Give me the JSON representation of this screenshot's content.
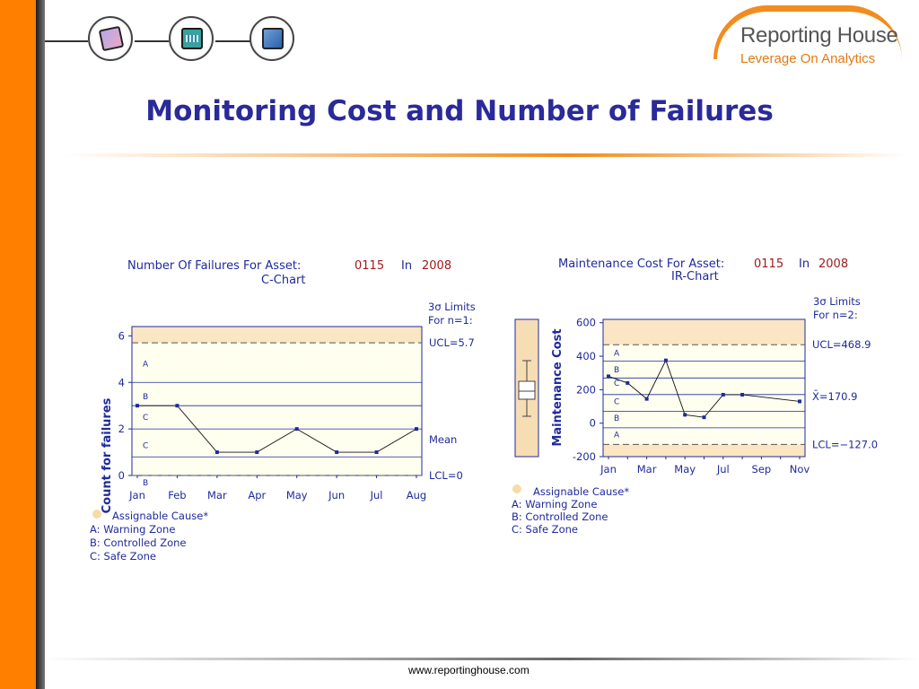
{
  "page": {
    "title": "Monitoring Cost and Number of Failures",
    "footer": "www.reportinghouse.com"
  },
  "logo": {
    "name": "Reporting House",
    "tagline": "Leverage On Analytics"
  },
  "nav": {
    "icons": [
      "chart-frame-icon",
      "dashboard-frame-icon",
      "monitor-icon"
    ]
  },
  "colors": {
    "accent_orange": "#ff7f00",
    "title_blue": "#2a2a9a",
    "chart_blue": "#1f2a9c",
    "chart_fill": "#fffff0",
    "zone_a_fill": "#fbe6c4",
    "lcl_box_fill": "#f7ddb4"
  },
  "chart_data": [
    {
      "type": "line",
      "title_label": "Number Of Failures For Asset:",
      "asset": "0115",
      "in_label": "In",
      "year": "2008",
      "subtitle": "C-Chart",
      "ylabel": "Count for failures",
      "xlabel": "",
      "limits_title": "3σ Limits",
      "limits_n": "For n=1:",
      "categories": [
        "Jan",
        "Feb",
        "Mar",
        "Apr",
        "May",
        "Jun",
        "Jul",
        "Aug"
      ],
      "values": [
        3,
        3,
        1,
        1,
        2,
        1,
        1,
        2
      ],
      "ylim": [
        0,
        6.4
      ],
      "yticks": [
        0,
        2,
        4,
        6
      ],
      "ucl": 5.7,
      "mean": 3.0,
      "lcl": 0,
      "ucl_label": "UCL=5.7",
      "mean_label": "Mean",
      "lcl_label": "LCL=0",
      "zone_lines": [
        4.0,
        2.0,
        0.8
      ],
      "zone_labels": [
        {
          "text": "A",
          "y": 4.8
        },
        {
          "text": "B",
          "y": 3.4
        },
        {
          "text": "C",
          "y": 2.5
        },
        {
          "text": "C",
          "y": 1.3
        },
        {
          "text": "B",
          "y": -0.3
        }
      ],
      "grid": false,
      "legend": {
        "assignable": "Assignable Cause*",
        "a": "A: Warning Zone",
        "b": "B: Controlled Zone",
        "c": "C: Safe Zone"
      }
    },
    {
      "type": "line",
      "title_label": "Maintenance Cost For Asset:",
      "asset": "0115",
      "in_label": "In",
      "year": "2008",
      "subtitle": "IR-Chart",
      "ylabel": "Maintenance Cost",
      "xlabel": "",
      "limits_title": "3σ Limits",
      "limits_n": "For n=2:",
      "categories": [
        "Jan",
        "",
        "Mar",
        "",
        "May",
        "",
        "Jul",
        "",
        "Sep",
        "",
        "Nov"
      ],
      "tick_labels": [
        "Jan",
        "Mar",
        "May",
        "Jul",
        "Sep",
        "Nov"
      ],
      "values": [
        280,
        240,
        145,
        375,
        50,
        35,
        170,
        170,
        null,
        null,
        130
      ],
      "ylim": [
        -200,
        620
      ],
      "yticks": [
        -200,
        0,
        200,
        400,
        600
      ],
      "ucl": 468.9,
      "mean": 170.9,
      "lcl": -127.0,
      "ucl_label": "UCL=468.9",
      "mean_label": "X̄=170.9",
      "lcl_label": "LCL=−127.0",
      "zone_lines": [
        370,
        270,
        70,
        -28
      ],
      "zone_labels": [
        {
          "text": "A",
          "y": 420
        },
        {
          "text": "B",
          "y": 320
        },
        {
          "text": "C",
          "y": 240
        },
        {
          "text": "C",
          "y": 130
        },
        {
          "text": "B",
          "y": 30
        },
        {
          "text": "A",
          "y": -70
        }
      ],
      "grid": false,
      "legend": {
        "assignable": "Assignable Cause*",
        "a": "A: Warning Zone",
        "b": "B: Controlled Zone",
        "c": "C: Safe Zone"
      }
    }
  ]
}
